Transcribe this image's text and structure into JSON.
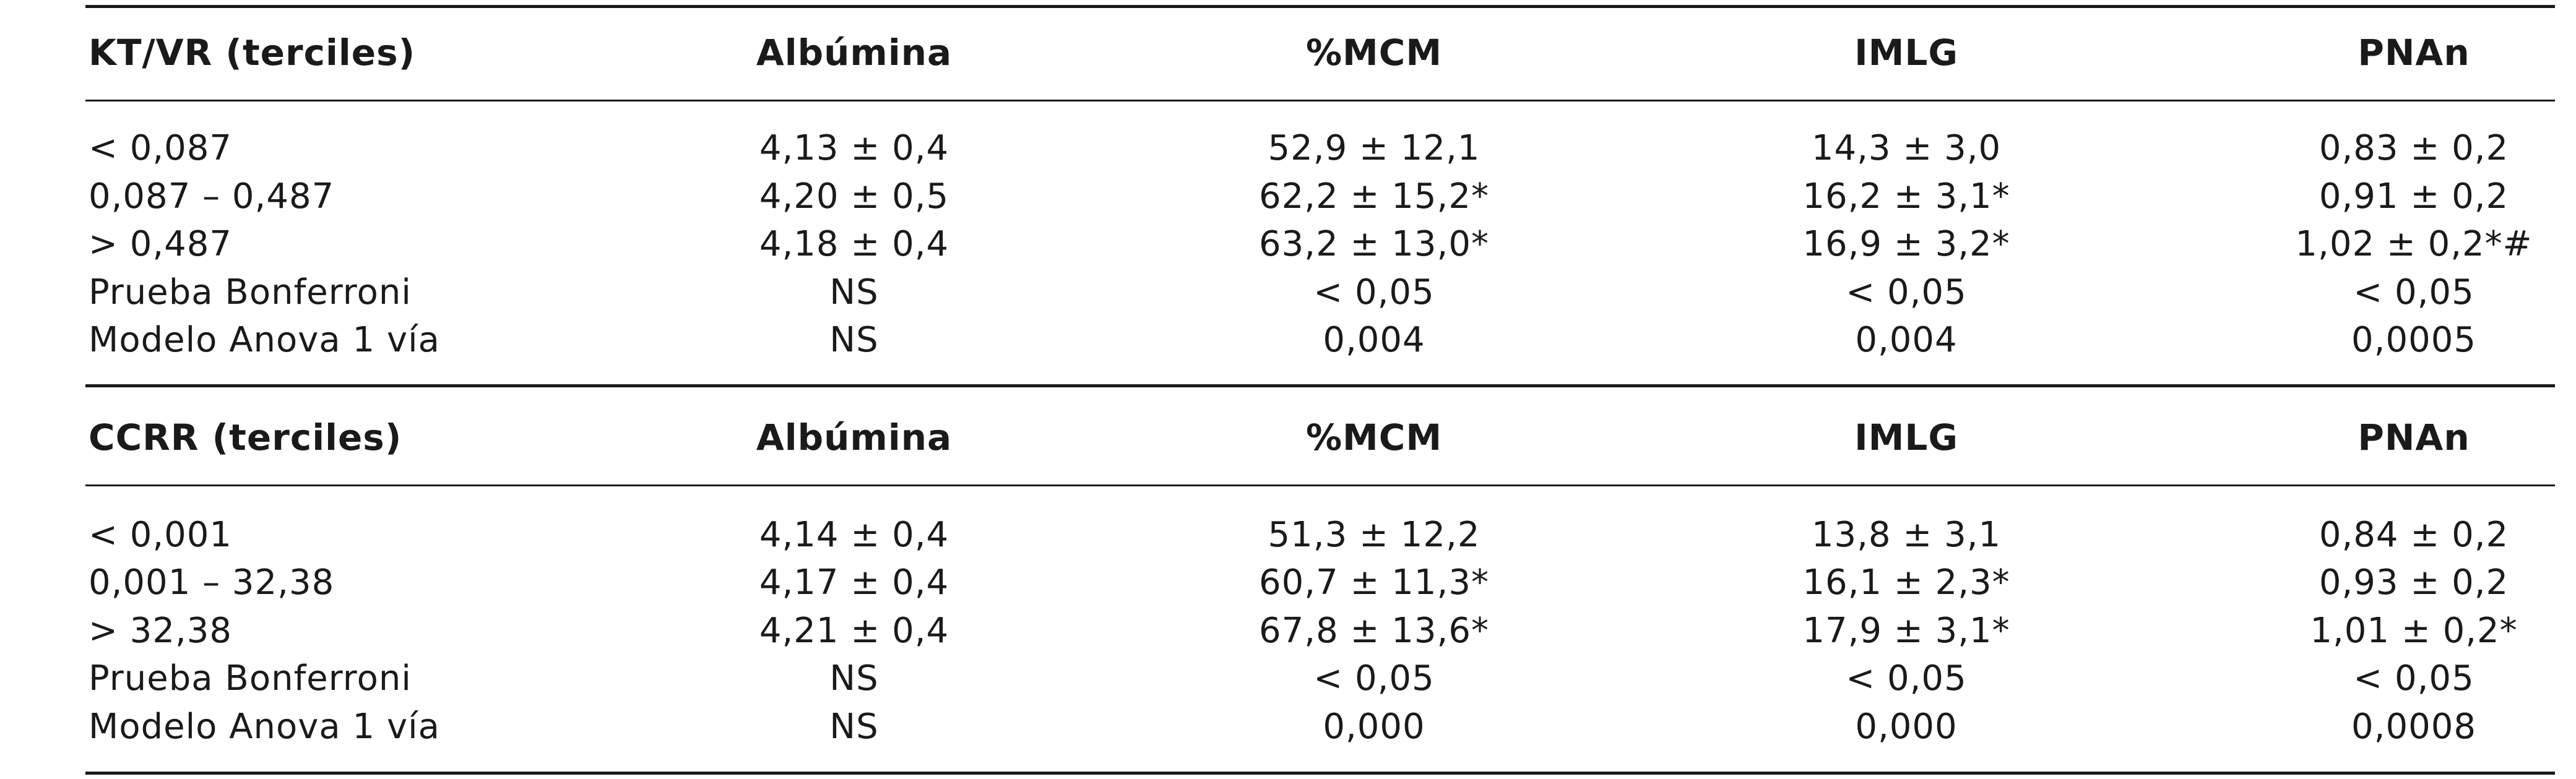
{
  "sections": [
    {
      "header": {
        "label": "KT/VR (terciles)",
        "albumina": "Albúmina",
        "mcm": "%MCM",
        "imlg": "IMLG",
        "pnan": "PNAn"
      },
      "rows": [
        {
          "label": "< 0,087",
          "albumina": "4,13 ± 0,4",
          "mcm": "52,9 ± 12,1",
          "imlg": "14,3 ± 3,0",
          "pnan": "0,83 ± 0,2"
        },
        {
          "label": "0,087 – 0,487",
          "albumina": "4,20 ± 0,5",
          "mcm": "62,2 ± 15,2*",
          "imlg": "16,2 ± 3,1*",
          "pnan": "0,91 ± 0,2"
        },
        {
          "label": "> 0,487",
          "albumina": "4,18 ± 0,4",
          "mcm": "63,2 ± 13,0*",
          "imlg": "16,9 ± 3,2*",
          "pnan": "1,02 ± 0,2*#"
        },
        {
          "label": "Prueba Bonferroni",
          "albumina": "NS",
          "mcm": "< 0,05",
          "imlg": "< 0,05",
          "pnan": "< 0,05"
        },
        {
          "label": "Modelo Anova 1 vía",
          "albumina": "NS",
          "mcm": "0,004",
          "imlg": "0,004",
          "pnan": "0,0005"
        }
      ]
    },
    {
      "header": {
        "label": "CCRR (terciles)",
        "albumina": "Albúmina",
        "mcm": "%MCM",
        "imlg": "IMLG",
        "pnan": "PNAn"
      },
      "rows": [
        {
          "label": "< 0,001",
          "albumina": "4,14 ± 0,4",
          "mcm": "51,3 ± 12,2",
          "imlg": "13,8 ± 3,1",
          "pnan": "0,84 ± 0,2"
        },
        {
          "label": "0,001 – 32,38",
          "albumina": "4,17 ± 0,4",
          "mcm": "60,7 ± 11,3*",
          "imlg": "16,1 ± 2,3*",
          "pnan": "0,93 ± 0,2"
        },
        {
          "label": "> 32,38",
          "albumina": "4,21 ± 0,4",
          "mcm": "67,8 ± 13,6*",
          "imlg": "17,9 ± 3,1*",
          "pnan": "1,01 ± 0,2*"
        },
        {
          "label": "Prueba Bonferroni",
          "albumina": "NS",
          "mcm": "< 0,05",
          "imlg": "< 0,05",
          "pnan": "< 0,05"
        },
        {
          "label": "Modelo Anova 1 vía",
          "albumina": "NS",
          "mcm": "0,000",
          "imlg": "0,000",
          "pnan": "0,0008"
        }
      ]
    }
  ]
}
